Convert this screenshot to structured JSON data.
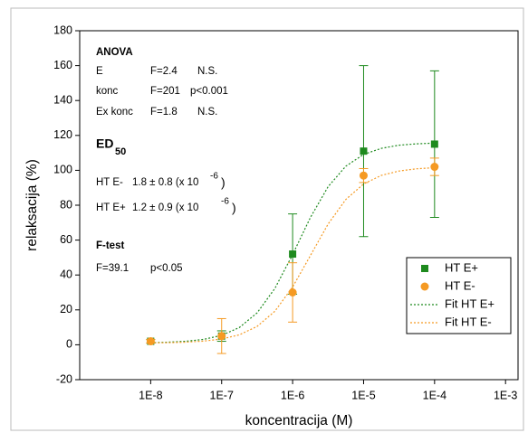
{
  "chart_data": {
    "type": "scatter",
    "x_label": "koncentracija (M)",
    "y_label": "relaksacija (%)",
    "xscale": "log",
    "xlim": [
      1e-09,
      0.0015
    ],
    "ylim": [
      -20,
      180
    ],
    "xticks": [
      {
        "value": 1e-08,
        "label": "1E-8"
      },
      {
        "value": 1e-07,
        "label": "1E-7"
      },
      {
        "value": 1e-06,
        "label": "1E-6"
      },
      {
        "value": 1e-05,
        "label": "1E-5"
      },
      {
        "value": 0.0001,
        "label": "1E-4"
      },
      {
        "value": 0.001,
        "label": "1E-3"
      }
    ],
    "yticks": [
      -20,
      0,
      20,
      40,
      60,
      80,
      100,
      120,
      140,
      160,
      180
    ],
    "grid": false,
    "legend": "lower right",
    "series": [
      {
        "name": "HT E+",
        "type": "scatter",
        "marker": "square",
        "color": "#1e8a1e",
        "x": [
          1e-08,
          1e-07,
          1e-06,
          1e-05,
          0.0001
        ],
        "values": [
          2,
          5,
          52,
          111,
          115
        ],
        "errors": [
          1,
          3,
          23,
          49,
          42
        ]
      },
      {
        "name": "HT E-",
        "type": "scatter",
        "marker": "circle",
        "color": "#f59a23",
        "x": [
          1e-08,
          1e-07,
          1e-06,
          1e-05,
          0.0001
        ],
        "values": [
          2,
          5,
          30,
          97,
          102
        ],
        "errors": [
          1,
          10,
          17,
          4,
          5
        ]
      },
      {
        "name": "Fit HT E+",
        "type": "line",
        "dash": "dotted",
        "color": "#1e8a1e",
        "x": [
          1e-08,
          1.778e-08,
          3.162e-08,
          5.623e-08,
          1e-07,
          1.778e-07,
          3.162e-07,
          5.623e-07,
          1e-06,
          1.778e-06,
          3.162e-06,
          5.623e-06,
          1e-05,
          1.778e-05,
          3.162e-05,
          5.623e-05,
          0.0001
        ],
        "values": [
          1.2,
          1.5,
          2.0,
          3.1,
          5.4,
          9.9,
          18.3,
          32.3,
          51.7,
          72.9,
          90.6,
          102.4,
          109.1,
          112.6,
          114.4,
          115.2,
          115.6
        ]
      },
      {
        "name": "Fit HT E-",
        "type": "line",
        "dash": "dotted",
        "color": "#f59a23",
        "x": [
          1e-08,
          1.778e-08,
          3.162e-08,
          5.623e-08,
          1e-07,
          1.778e-07,
          3.162e-07,
          5.623e-07,
          1e-06,
          1.778e-06,
          3.162e-06,
          5.623e-06,
          1e-05,
          1.778e-05,
          3.162e-05,
          5.623e-05,
          0.0001
        ],
        "values": [
          1.1,
          1.2,
          1.5,
          2.1,
          3.3,
          5.7,
          10.5,
          19.2,
          33.1,
          51.1,
          69.2,
          83.3,
          92.2,
          97.1,
          99.6,
          100.9,
          101.5
        ]
      }
    ],
    "annotations": {
      "anova_title": "ANOVA",
      "anova": [
        [
          "E",
          "F=2.4",
          "N.S."
        ],
        [
          "konc",
          "F=201",
          "p<0.001"
        ],
        [
          "Ex konc",
          "F=1.8",
          "N.S."
        ]
      ],
      "ed_title": "ED",
      "ed_sub": "50",
      "ed": [
        {
          "label": "HT E-",
          "value": "1.8 ± 0.8 (x 10",
          "exp": "-6",
          "close": ")"
        },
        {
          "label": "HT E+",
          "value": "1.2 ± 0.9 (x 10",
          "exp": "-6",
          "close": ")"
        }
      ],
      "ftest_title": "F-test",
      "ftest": [
        "F=39.1",
        "p<0.05"
      ]
    }
  }
}
